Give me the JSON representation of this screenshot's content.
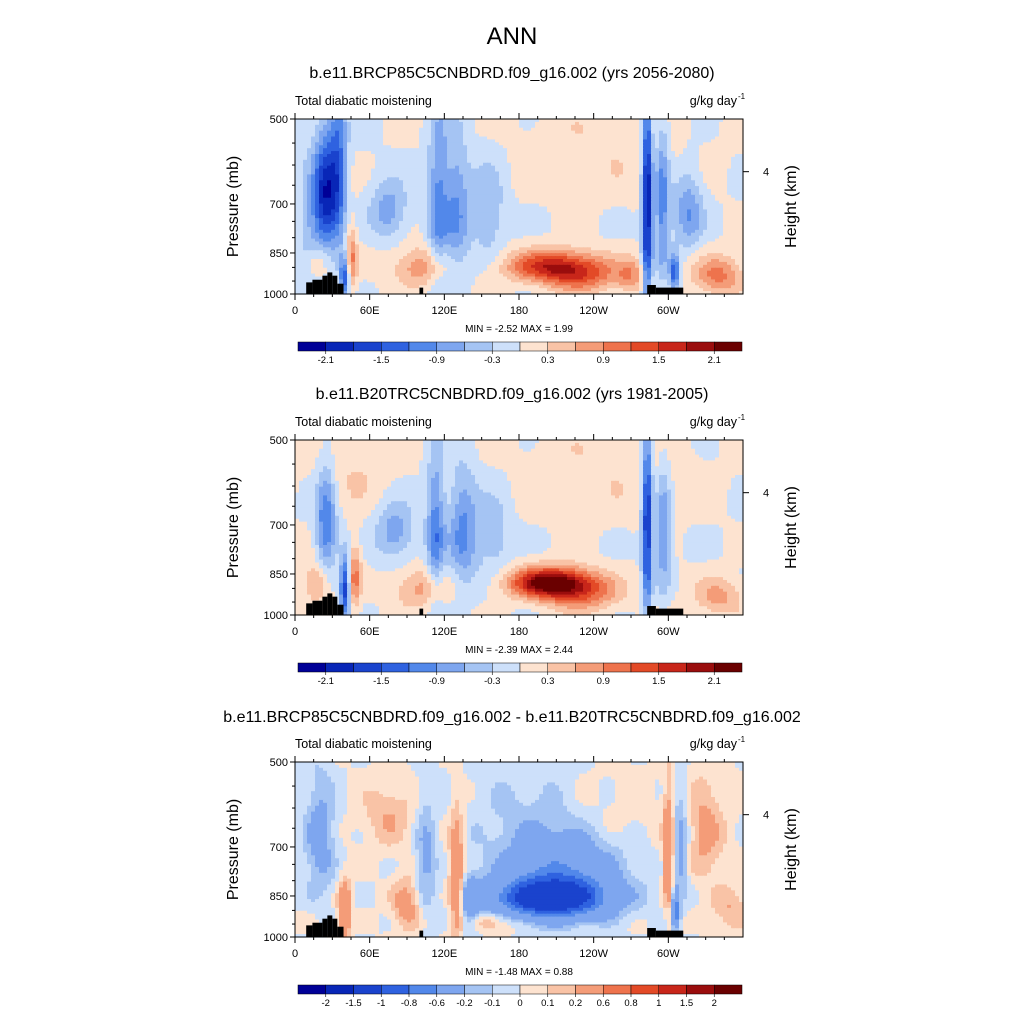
{
  "main_title": "ANN",
  "chart_data": [
    {
      "type": "heatmap",
      "title": "b.e11.BRCP85C5CNBDRD.f09_g16.002 (yrs 2056-2080)",
      "left_label": "Total diabatic moistening",
      "units": "g/kg day",
      "units_exp": "-1",
      "ylabel": "Pressure (mb)",
      "y2label": "Height (km)",
      "yticks": [
        "500",
        "700",
        "850",
        "1000"
      ],
      "ytick_values": [
        500,
        700,
        850,
        1000
      ],
      "y2ticks": [
        "4"
      ],
      "xticks": [
        "0",
        "60E",
        "120E",
        "180",
        "120W",
        "60W"
      ],
      "xtick_lons": [
        0,
        60,
        120,
        180,
        240,
        300
      ],
      "xlim": [
        0,
        360
      ],
      "ylim": [
        1000,
        500
      ],
      "stats": "MIN =  -2.52  MAX =   1.99",
      "cbar_labels": [
        "-2.1",
        "-1.5",
        "-0.9",
        "-0.3",
        "0.3",
        "0.9",
        "1.5",
        "2.1"
      ],
      "cbar_label_positions": [
        1,
        3,
        5,
        7,
        9,
        11,
        13,
        15
      ],
      "field": [
        {
          "lon": 25,
          "p": 670,
          "a": -1.7,
          "r": 9,
          "h": 150
        },
        {
          "lon": 35,
          "p": 620,
          "a": -1.2,
          "r": 7,
          "h": 200
        },
        {
          "lon": 40,
          "p": 930,
          "a": -1.6,
          "r": 4,
          "h": 80
        },
        {
          "lon": 45,
          "p": 870,
          "a": 1.0,
          "r": 5,
          "h": 110
        },
        {
          "lon": 15,
          "p": 790,
          "a": -0.7,
          "r": 12,
          "h": 220
        },
        {
          "lon": 18,
          "p": 880,
          "a": 0.9,
          "r": 10,
          "h": 70
        },
        {
          "lon": 75,
          "p": 720,
          "a": -0.8,
          "r": 15,
          "h": 80
        },
        {
          "lon": 115,
          "p": 700,
          "a": -1.0,
          "r": 8,
          "h": 230
        },
        {
          "lon": 130,
          "p": 720,
          "a": -0.9,
          "r": 10,
          "h": 200
        },
        {
          "lon": 155,
          "p": 720,
          "a": -0.6,
          "r": 14,
          "h": 140
        },
        {
          "lon": 100,
          "p": 900,
          "a": 0.8,
          "r": 22,
          "h": 70
        },
        {
          "lon": 208,
          "p": 895,
          "a": 1.6,
          "r": 38,
          "h": 55
        },
        {
          "lon": 230,
          "p": 940,
          "a": 0.9,
          "r": 30,
          "h": 60
        },
        {
          "lon": 283,
          "p": 700,
          "a": -2.2,
          "r": 4,
          "h": 320
        },
        {
          "lon": 295,
          "p": 700,
          "a": -1.1,
          "r": 6,
          "h": 220
        },
        {
          "lon": 316,
          "p": 720,
          "a": -0.9,
          "r": 12,
          "h": 110
        },
        {
          "lon": 305,
          "p": 920,
          "a": -1.5,
          "r": 4,
          "h": 60
        },
        {
          "lon": 340,
          "p": 930,
          "a": 1.0,
          "r": 20,
          "h": 70
        },
        {
          "lon": 270,
          "p": 930,
          "a": 0.7,
          "r": 12,
          "h": 60
        },
        {
          "lon": 250,
          "p": 560,
          "a": 0.25,
          "r": 70,
          "h": 120
        }
      ]
    },
    {
      "type": "heatmap",
      "title": "b.e11.B20TRC5CNBDRD.f09_g16.002 (yrs 1981-2005)",
      "left_label": "Total diabatic moistening",
      "units": "g/kg day",
      "units_exp": "-1",
      "ylabel": "Pressure (mb)",
      "y2label": "Height (km)",
      "yticks": [
        "500",
        "700",
        "850",
        "1000"
      ],
      "ytick_values": [
        500,
        700,
        850,
        1000
      ],
      "y2ticks": [
        "4"
      ],
      "xticks": [
        "0",
        "60E",
        "120E",
        "180",
        "120W",
        "60W"
      ],
      "xtick_lons": [
        0,
        60,
        120,
        180,
        240,
        300
      ],
      "xlim": [
        0,
        360
      ],
      "ylim": [
        1000,
        500
      ],
      "stats": "MIN =  -2.39  MAX =   2.44",
      "cbar_labels": [
        "-2.1",
        "-1.5",
        "-0.9",
        "-0.3",
        "0.3",
        "0.9",
        "1.5",
        "2.1"
      ],
      "cbar_label_positions": [
        1,
        3,
        5,
        7,
        9,
        11,
        13,
        15
      ],
      "field": [
        {
          "lon": 25,
          "p": 700,
          "a": -1.2,
          "r": 8,
          "h": 150
        },
        {
          "lon": 40,
          "p": 900,
          "a": -1.7,
          "r": 4,
          "h": 110
        },
        {
          "lon": 48,
          "p": 860,
          "a": 1.0,
          "r": 5,
          "h": 110
        },
        {
          "lon": 18,
          "p": 880,
          "a": 0.8,
          "r": 10,
          "h": 70
        },
        {
          "lon": 80,
          "p": 720,
          "a": -0.8,
          "r": 16,
          "h": 80
        },
        {
          "lon": 113,
          "p": 720,
          "a": -1.1,
          "r": 7,
          "h": 200
        },
        {
          "lon": 135,
          "p": 720,
          "a": -1.0,
          "r": 12,
          "h": 160
        },
        {
          "lon": 160,
          "p": 730,
          "a": -0.5,
          "r": 14,
          "h": 120
        },
        {
          "lon": 100,
          "p": 900,
          "a": 0.7,
          "r": 22,
          "h": 70
        },
        {
          "lon": 205,
          "p": 880,
          "a": 2.3,
          "r": 32,
          "h": 52
        },
        {
          "lon": 230,
          "p": 920,
          "a": 1.0,
          "r": 30,
          "h": 65
        },
        {
          "lon": 283,
          "p": 700,
          "a": -1.9,
          "r": 4,
          "h": 280
        },
        {
          "lon": 296,
          "p": 720,
          "a": -0.9,
          "r": 6,
          "h": 180
        },
        {
          "lon": 340,
          "p": 930,
          "a": 0.7,
          "r": 20,
          "h": 70
        },
        {
          "lon": 250,
          "p": 560,
          "a": 0.25,
          "r": 70,
          "h": 120
        },
        {
          "lon": 50,
          "p": 560,
          "a": 0.3,
          "r": 30,
          "h": 100
        }
      ]
    },
    {
      "type": "heatmap",
      "title": "b.e11.BRCP85C5CNBDRD.f09_g16.002 - b.e11.B20TRC5CNBDRD.f09_g16.002",
      "left_label": "Total diabatic moistening",
      "units": "g/kg day",
      "units_exp": "-1",
      "ylabel": "Pressure (mb)",
      "y2label": "Height (km)",
      "yticks": [
        "500",
        "700",
        "850",
        "1000"
      ],
      "ytick_values": [
        500,
        700,
        850,
        1000
      ],
      "y2ticks": [
        "4"
      ],
      "xticks": [
        "0",
        "60E",
        "120E",
        "180",
        "120W",
        "60W"
      ],
      "xtick_lons": [
        0,
        60,
        120,
        180,
        240,
        300
      ],
      "xlim": [
        0,
        360
      ],
      "ylim": [
        1000,
        500
      ],
      "stats": "MIN =  -1.48  MAX =   0.88",
      "cbar_labels": [
        "-2",
        "-1.5",
        "-1",
        "-0.8",
        "-0.6",
        "-0.2",
        "-0.1",
        "0",
        "0.1",
        "0.2",
        "0.6",
        "0.8",
        "1",
        "1.5",
        "2"
      ],
      "cbar_label_positions": [
        1,
        2,
        3,
        4,
        5,
        6,
        7,
        8,
        9,
        10,
        11,
        12,
        13,
        14,
        15
      ],
      "field": [
        {
          "lon": 205,
          "p": 860,
          "a": -1.3,
          "r": 45,
          "h": 70
        },
        {
          "lon": 215,
          "p": 760,
          "a": -0.45,
          "r": 45,
          "h": 110
        },
        {
          "lon": 200,
          "p": 620,
          "a": -0.15,
          "r": 55,
          "h": 140
        },
        {
          "lon": 20,
          "p": 680,
          "a": -0.3,
          "r": 12,
          "h": 160
        },
        {
          "lon": 40,
          "p": 900,
          "a": 0.5,
          "r": 5,
          "h": 100
        },
        {
          "lon": 105,
          "p": 740,
          "a": -0.25,
          "r": 8,
          "h": 180
        },
        {
          "lon": 130,
          "p": 800,
          "a": 0.45,
          "r": 6,
          "h": 200
        },
        {
          "lon": 90,
          "p": 880,
          "a": 0.3,
          "r": 12,
          "h": 90
        },
        {
          "lon": 140,
          "p": 880,
          "a": -0.3,
          "r": 8,
          "h": 100
        },
        {
          "lon": 75,
          "p": 620,
          "a": 0.2,
          "r": 20,
          "h": 80
        },
        {
          "lon": 300,
          "p": 720,
          "a": 0.5,
          "r": 4,
          "h": 160
        },
        {
          "lon": 310,
          "p": 700,
          "a": -0.3,
          "r": 6,
          "h": 150
        },
        {
          "lon": 306,
          "p": 900,
          "a": -0.8,
          "r": 3,
          "h": 60
        },
        {
          "lon": 330,
          "p": 660,
          "a": 0.25,
          "r": 15,
          "h": 130
        },
        {
          "lon": 350,
          "p": 900,
          "a": 0.2,
          "r": 15,
          "h": 80
        },
        {
          "lon": 240,
          "p": 620,
          "a": 0.12,
          "r": 50,
          "h": 120
        },
        {
          "lon": 160,
          "p": 940,
          "a": 0.25,
          "r": 20,
          "h": 40
        }
      ]
    }
  ]
}
